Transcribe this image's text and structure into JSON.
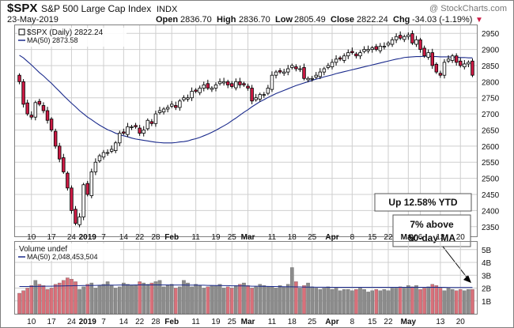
{
  "header": {
    "symbol": "$SPX",
    "name": "S&P 500 Large Cap Index",
    "exchange": "INDX",
    "watermark": "@ StockCharts.com",
    "date": "23-May-2019",
    "open_label": "Open",
    "open": "2836.70",
    "high_label": "High",
    "high": "2836.70",
    "low_label": "Low",
    "low": "2805.49",
    "close_label": "Close",
    "close": "2822.24",
    "chg_label": "Chg",
    "chg": "-34.03 (-1.19%)",
    "chg_arrow": "▼"
  },
  "legend": {
    "price_series": "$SPX (Daily) 2822.24",
    "ma_series": "MA(50) 2873.58",
    "volume_series": "Volume undef",
    "volume_ma": "MA(50) 2,048,453,504"
  },
  "annotations": {
    "ytd_box": "Up 12.58% YTD",
    "ma_box_line1": "7% above",
    "ma_box_line2": "50-day MA"
  },
  "colors": {
    "up_fill": "#ffffff",
    "down_fill": "#cc1a44",
    "candle_outline": "#000000",
    "ma_line": "#1a2a8c",
    "vol_up": "#8c8c8c",
    "vol_down": "#d9707a",
    "grid": "#cfcfcf",
    "border": "#7f7f7f"
  },
  "chart_data": {
    "type": "candlestick",
    "y_ticks": [
      "2950",
      "2900",
      "2850",
      "2800",
      "2750",
      "2700",
      "2650",
      "2600",
      "2550",
      "2500",
      "2450",
      "2400",
      "2350"
    ],
    "y_tick_values": [
      2950,
      2900,
      2850,
      2800,
      2750,
      2700,
      2650,
      2600,
      2550,
      2500,
      2450,
      2400,
      2350
    ],
    "ylim": [
      2320,
      2975
    ],
    "vol_ticks": [
      "5B",
      "4B",
      "3B",
      "2B",
      "1B"
    ],
    "vol_tick_values": [
      5,
      4,
      3,
      2,
      1
    ],
    "vol_lim": [
      0,
      5.6
    ],
    "x_ticks": [
      {
        "label": "10",
        "i": 3
      },
      {
        "label": "17",
        "i": 8
      },
      {
        "label": "24",
        "i": 13
      },
      {
        "label": "2019",
        "i": 17,
        "bold": true
      },
      {
        "label": "7",
        "i": 21
      },
      {
        "label": "14",
        "i": 26
      },
      {
        "label": "22",
        "i": 30
      },
      {
        "label": "28",
        "i": 34
      },
      {
        "label": "Feb",
        "i": 38,
        "bold": true
      },
      {
        "label": "11",
        "i": 44
      },
      {
        "label": "19",
        "i": 49
      },
      {
        "label": "25",
        "i": 53
      },
      {
        "label": "Mar",
        "i": 57,
        "bold": true
      },
      {
        "label": "11",
        "i": 63
      },
      {
        "label": "18",
        "i": 68
      },
      {
        "label": "25",
        "i": 73
      },
      {
        "label": "Apr",
        "i": 78,
        "bold": true
      },
      {
        "label": "8",
        "i": 83
      },
      {
        "label": "15",
        "i": 88
      },
      {
        "label": "22",
        "i": 92
      },
      {
        "label": "May",
        "i": 97,
        "bold": true
      },
      {
        "label": "6",
        "i": 100
      },
      {
        "label": "13",
        "i": 105
      },
      {
        "label": "20",
        "i": 110
      }
    ],
    "vol_x_ticks": [
      {
        "label": "10",
        "i": 3
      },
      {
        "label": "17",
        "i": 8
      },
      {
        "label": "24",
        "i": 13
      },
      {
        "label": "2019",
        "i": 17,
        "bold": true
      },
      {
        "label": "7",
        "i": 21
      },
      {
        "label": "14",
        "i": 26
      },
      {
        "label": "22",
        "i": 30
      },
      {
        "label": "28",
        "i": 34
      },
      {
        "label": "Feb",
        "i": 38,
        "bold": true
      },
      {
        "label": "11",
        "i": 44
      },
      {
        "label": "19",
        "i": 49
      },
      {
        "label": "25",
        "i": 53
      },
      {
        "label": "Mar",
        "i": 57,
        "bold": true
      },
      {
        "label": "11",
        "i": 63
      },
      {
        "label": "18",
        "i": 68
      },
      {
        "label": "25",
        "i": 73
      },
      {
        "label": "Apr",
        "i": 78,
        "bold": true
      },
      {
        "label": "8",
        "i": 83
      },
      {
        "label": "15",
        "i": 88
      },
      {
        "label": "22",
        "i": 92
      },
      {
        "label": "May",
        "i": 97,
        "bold": true
      },
      {
        "label": "13",
        "i": 105
      },
      {
        "label": "20",
        "i": 110
      }
    ],
    "close": [
      2800,
      2730,
      2700,
      2690,
      2735,
      2730,
      2710,
      2680,
      2650,
      2600,
      2560,
      2520,
      2470,
      2400,
      2360,
      2380,
      2480,
      2450,
      2520,
      2550,
      2570,
      2580,
      2580,
      2590,
      2610,
      2640,
      2640,
      2660,
      2660,
      2660,
      2640,
      2650,
      2680,
      2670,
      2700,
      2710,
      2715,
      2720,
      2730,
      2720,
      2740,
      2750,
      2750,
      2770,
      2770,
      2780,
      2790,
      2780,
      2780,
      2790,
      2800,
      2800,
      2790,
      2785,
      2800,
      2790,
      2790,
      2780,
      2740,
      2750,
      2760,
      2760,
      2780,
      2820,
      2830,
      2830,
      2830,
      2840,
      2850,
      2840,
      2840,
      2810,
      2810,
      2810,
      2820,
      2830,
      2840,
      2850,
      2860,
      2870,
      2870,
      2880,
      2890,
      2890,
      2880,
      2890,
      2900,
      2900,
      2905,
      2900,
      2910,
      2910,
      2920,
      2930,
      2940,
      2935,
      2940,
      2945,
      2920,
      2930,
      2900,
      2880,
      2890,
      2850,
      2830,
      2820,
      2860,
      2870,
      2880,
      2860,
      2850,
      2855,
      2860,
      2820
    ],
    "ma50": [
      2882,
      2874,
      2863,
      2852,
      2840,
      2828,
      2818,
      2806,
      2795,
      2782,
      2770,
      2757,
      2745,
      2733,
      2722,
      2710,
      2700,
      2690,
      2682,
      2673,
      2665,
      2658,
      2651,
      2646,
      2640,
      2636,
      2632,
      2629,
      2625,
      2622,
      2620,
      2618,
      2616,
      2614,
      2612,
      2611,
      2610,
      2610,
      2610,
      2611,
      2613,
      2614,
      2616,
      2620,
      2623,
      2627,
      2632,
      2637,
      2643,
      2649,
      2656,
      2663,
      2670,
      2679,
      2687,
      2696,
      2705,
      2713,
      2722,
      2730,
      2738,
      2744,
      2751,
      2757,
      2763,
      2768,
      2773,
      2778,
      2783,
      2788,
      2792,
      2796,
      2800,
      2804,
      2808,
      2811,
      2815,
      2818,
      2821,
      2825,
      2828,
      2831,
      2834,
      2837,
      2840,
      2843,
      2846,
      2849,
      2852,
      2855,
      2858,
      2861,
      2864,
      2867,
      2870,
      2872,
      2875,
      2876,
      2877,
      2878,
      2878,
      2879,
      2879,
      2878,
      2878,
      2877,
      2877,
      2877,
      2876,
      2876,
      2875,
      2875,
      2874,
      2874
    ],
    "volume": [
      1.6,
      1.8,
      2.0,
      2.2,
      2.6,
      2.3,
      2.2,
      1.9,
      2.0,
      2.3,
      2.4,
      2.6,
      2.8,
      2.7,
      2.5,
      1.9,
      2.1,
      2.3,
      2.4,
      2.0,
      2.2,
      2.3,
      2.5,
      2.2,
      2.0,
      2.1,
      2.4,
      2.3,
      2.2,
      2.2,
      2.5,
      2.4,
      2.3,
      2.4,
      2.5,
      2.6,
      2.1,
      2.2,
      2.3,
      2.0,
      2.1,
      2.6,
      2.4,
      2.1,
      2.3,
      2.2,
      2.0,
      2.1,
      2.2,
      2.2,
      2.3,
      2.0,
      2.1,
      2.0,
      2.2,
      2.3,
      2.4,
      2.2,
      2.0,
      2.1,
      2.3,
      2.2,
      2.1,
      2.1,
      2.0,
      2.2,
      2.1,
      2.3,
      3.6,
      2.5,
      2.0,
      2.2,
      2.4,
      2.1,
      2.0,
      1.9,
      2.0,
      2.1,
      1.9,
      2.0,
      1.8,
      1.9,
      1.9,
      1.8,
      1.9,
      2.0,
      1.9,
      1.7,
      1.8,
      1.9,
      1.8,
      1.9,
      1.8,
      2.0,
      2.0,
      2.1,
      2.0,
      2.2,
      2.1,
      2.2,
      1.9,
      2.0,
      2.1,
      2.3,
      2.2,
      2.0,
      1.8,
      2.0,
      1.9,
      1.8,
      1.9,
      1.8,
      1.9,
      1.9
    ],
    "volume_ma": [
      2.12,
      2.12,
      2.12,
      2.13,
      2.13,
      2.14,
      2.14,
      2.15,
      2.15,
      2.16,
      2.16,
      2.17,
      2.18,
      2.18,
      2.19,
      2.19,
      2.2,
      2.2,
      2.21,
      2.21,
      2.22,
      2.22,
      2.23,
      2.23,
      2.23,
      2.24,
      2.24,
      2.24,
      2.24,
      2.25,
      2.25,
      2.25,
      2.25,
      2.25,
      2.25,
      2.25,
      2.25,
      2.25,
      2.24,
      2.24,
      2.24,
      2.24,
      2.23,
      2.23,
      2.23,
      2.22,
      2.22,
      2.21,
      2.21,
      2.2,
      2.2,
      2.19,
      2.19,
      2.18,
      2.18,
      2.17,
      2.17,
      2.16,
      2.15,
      2.15,
      2.14,
      2.14,
      2.13,
      2.12,
      2.12,
      2.11,
      2.11,
      2.1,
      2.1,
      2.09,
      2.09,
      2.08,
      2.08,
      2.08,
      2.07,
      2.07,
      2.07,
      2.06,
      2.06,
      2.06,
      2.06,
      2.06,
      2.06,
      2.06,
      2.06,
      2.06,
      2.06,
      2.06,
      2.06,
      2.06,
      2.06,
      2.06,
      2.06,
      2.06,
      2.06,
      2.06,
      2.06,
      2.06,
      2.06,
      2.06,
      2.06,
      2.06,
      2.06,
      2.06,
      2.06,
      2.06,
      2.06,
      2.05,
      2.05,
      2.05,
      2.05,
      2.05,
      2.05,
      2.05
    ]
  }
}
